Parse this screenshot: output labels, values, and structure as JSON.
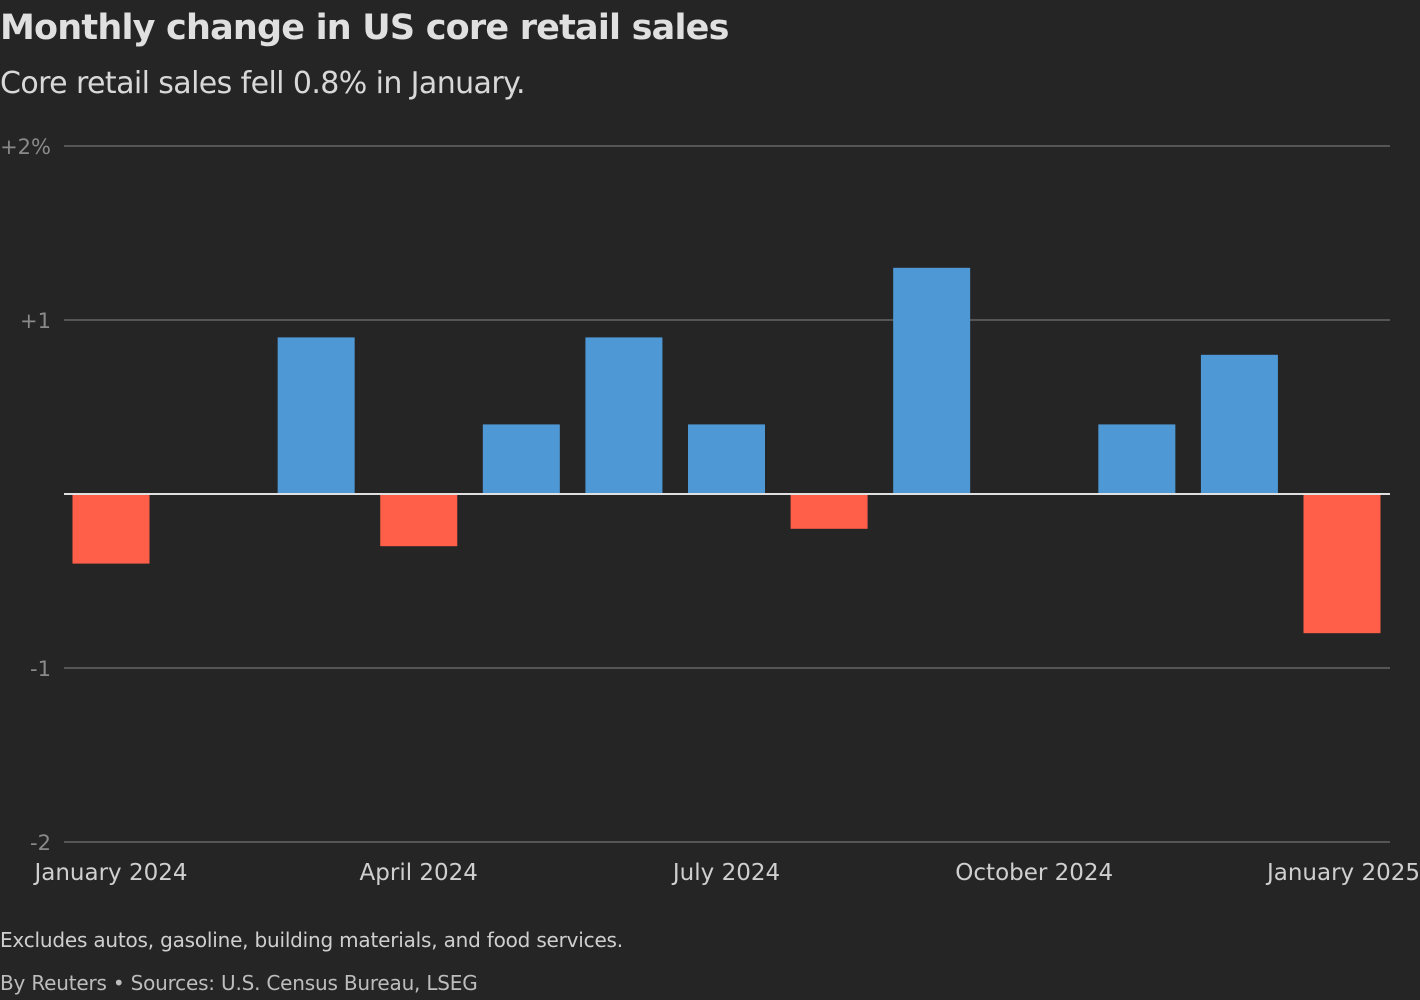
{
  "chart_data": {
    "type": "bar",
    "title": "Monthly change in US core retail sales",
    "subtitle": "Core retail sales fell 0.8% in January.",
    "xlabel": "",
    "ylabel": "",
    "categories": [
      "Jan 2024",
      "Feb 2024",
      "Mar 2024",
      "Apr 2024",
      "May 2024",
      "Jun 2024",
      "Jul 2024",
      "Aug 2024",
      "Sep 2024",
      "Oct 2024",
      "Nov 2024",
      "Dec 2024",
      "Jan 2025"
    ],
    "values": [
      -0.4,
      0.0,
      0.9,
      -0.3,
      0.4,
      0.9,
      0.4,
      -0.2,
      1.3,
      0.0,
      0.4,
      0.8,
      -0.8
    ],
    "ylim": [
      -2,
      2
    ],
    "yticks": [
      {
        "value": 2,
        "label": "+2%"
      },
      {
        "value": 1,
        "label": "+1"
      },
      {
        "value": -1,
        "label": "-1"
      },
      {
        "value": -2,
        "label": "-2"
      }
    ],
    "xticks": [
      {
        "index": 0,
        "label": "January 2024"
      },
      {
        "index": 3,
        "label": "April 2024"
      },
      {
        "index": 6,
        "label": "July 2024"
      },
      {
        "index": 9,
        "label": "October 2024"
      },
      {
        "index": 12,
        "label": "January 2025"
      }
    ],
    "grid": true,
    "colors": {
      "positive": "#4e98d5",
      "negative": "#ff5e48",
      "zero_line": "#e0e0e0",
      "grid": "#555555"
    }
  },
  "footer": {
    "note": "Excludes autos, gasoline, building materials, and food services.",
    "source": "By Reuters • Sources: U.S. Census Bureau, LSEG"
  }
}
